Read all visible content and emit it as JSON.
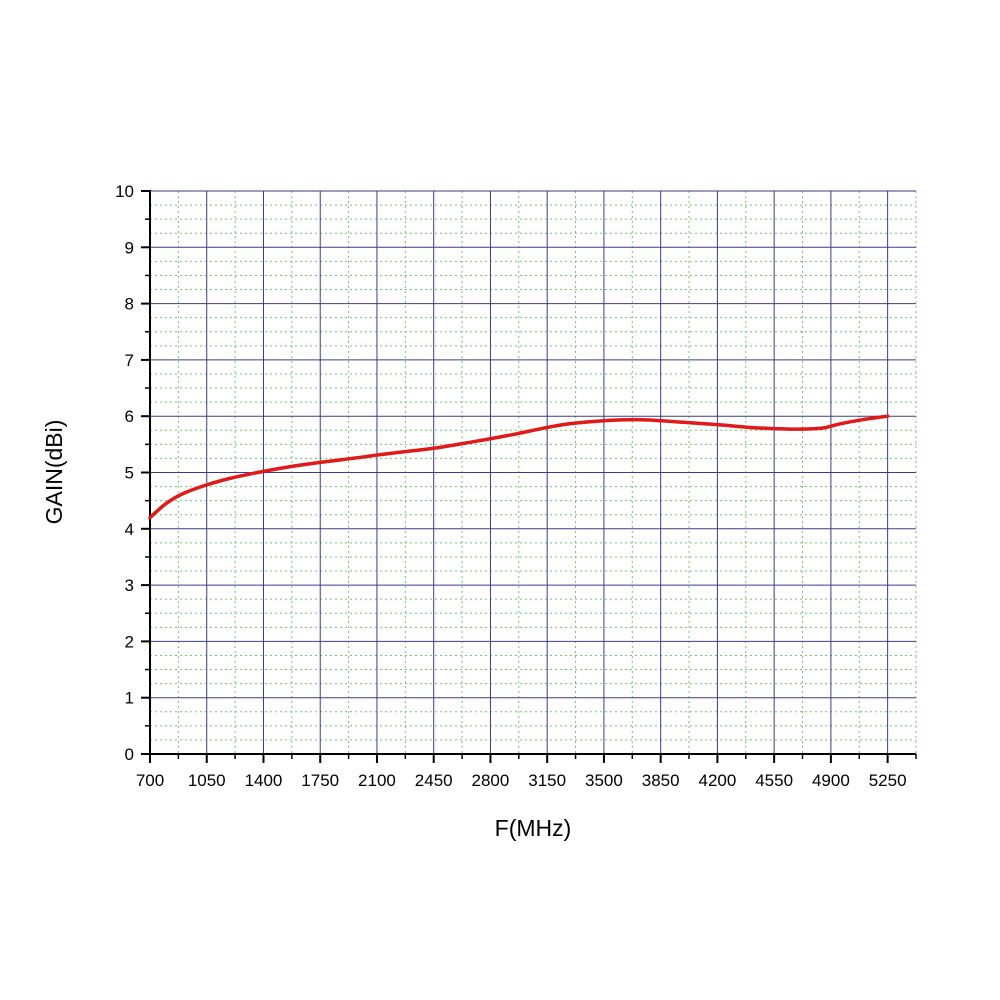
{
  "chart_data": {
    "type": "line",
    "title": "",
    "xlabel": "F(MHz)",
    "ylabel": "GAIN(dBi)",
    "xlim": [
      700,
      5425
    ],
    "ylim": [
      0,
      10
    ],
    "x_ticks": [
      700,
      1050,
      1400,
      1750,
      2100,
      2450,
      2800,
      3150,
      3500,
      3850,
      4200,
      4550,
      4900,
      5250
    ],
    "x_tick_labels": [
      "700",
      "1050",
      "1400",
      "1750",
      "2100",
      "2450",
      "2800",
      "3150",
      "3500",
      "3850",
      "4200",
      "4550",
      "4900",
      "5250"
    ],
    "y_ticks": [
      0,
      1,
      2,
      3,
      4,
      5,
      6,
      7,
      8,
      9,
      10
    ],
    "y_tick_labels": [
      "0",
      "1",
      "2",
      "3",
      "4",
      "5",
      "6",
      "7",
      "8",
      "9",
      "10"
    ],
    "grid": {
      "major": true,
      "minor": true,
      "major_color": "#3b3b8a",
      "minor_color": "#6fc46f"
    },
    "legend": "none",
    "series": [
      {
        "color": "#e01919",
        "x": [
          700,
          800,
          900,
          1050,
          1200,
          1400,
          1600,
          1750,
          2000,
          2100,
          2300,
          2450,
          2600,
          2800,
          2950,
          3150,
          3300,
          3500,
          3700,
          3850,
          4000,
          4200,
          4400,
          4550,
          4700,
          4850,
          4950,
          5100,
          5250
        ],
        "y": [
          4.2,
          4.45,
          4.62,
          4.78,
          4.9,
          5.02,
          5.12,
          5.18,
          5.27,
          5.31,
          5.38,
          5.43,
          5.5,
          5.6,
          5.68,
          5.8,
          5.87,
          5.92,
          5.94,
          5.92,
          5.89,
          5.85,
          5.8,
          5.78,
          5.77,
          5.79,
          5.86,
          5.94,
          6.0
        ]
      }
    ]
  }
}
